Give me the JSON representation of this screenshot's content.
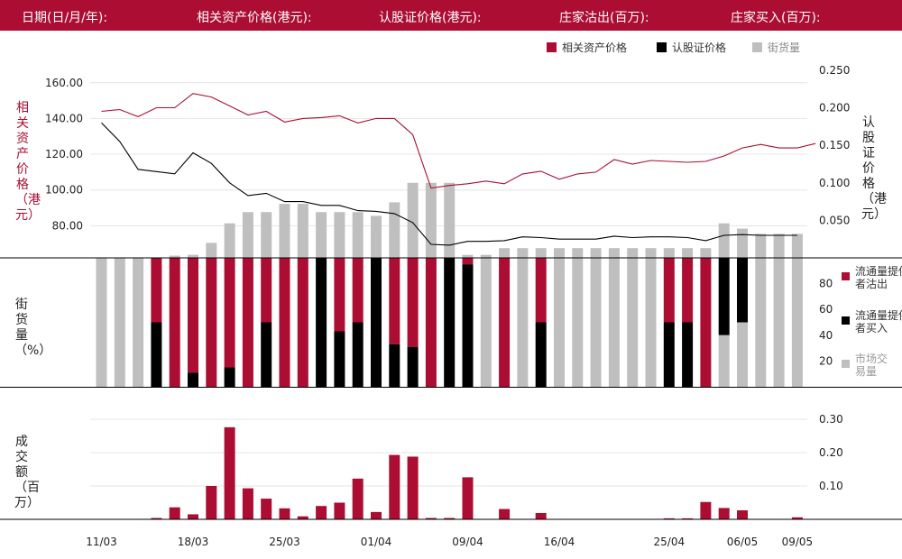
{
  "header": {
    "date_label": "日期(日/月/年):",
    "underlying_price_label": "相关资产价格(港元):",
    "warrant_price_label": "认股证价格(港元):",
    "issuer_sell_label": "庄家沽出(百万):",
    "issuer_buy_label": "庄家买入(百万):"
  },
  "legend": {
    "underlying": "相关资产价格",
    "warrant": "认股证价格",
    "outstanding": "街货量"
  },
  "legend_mid": {
    "sell": "流通量提供者沽出",
    "buy": "流通量提供者买入",
    "market": "市场交易量"
  },
  "axis_titles": {
    "left_top": "相关资产价格（港元）",
    "right_top": "认股证价格（港元）",
    "left_mid": "街货量（%）",
    "left_bottom": "成交额（百万）"
  },
  "colors": {
    "header_bg": "#ab0d33",
    "underlying": "#ab0d33",
    "warrant": "#000000",
    "outstanding": "#bfbfbf",
    "sell": "#ab0d33",
    "buy": "#000000",
    "market": "#bfbfbf",
    "turnover": "#ab0d33"
  },
  "chart_data": {
    "type": "line",
    "x_labels": [
      "11/03",
      "18/03",
      "25/03",
      "01/04",
      "09/04",
      "16/04",
      "25/04",
      "06/05",
      "09/05"
    ],
    "x_label_index": [
      0,
      5,
      10,
      15,
      20,
      25,
      31,
      35,
      38
    ],
    "left_axis": {
      "ticks": [
        "80.00",
        "100.00",
        "120.00",
        "140.00",
        "160.00"
      ],
      "ylim": [
        62,
        172
      ]
    },
    "right_axis": {
      "ticks": [
        "0.050",
        "0.100",
        "0.150",
        "0.200",
        "0.250"
      ],
      "ylim": [
        0,
        0.262
      ]
    },
    "mid_axis": {
      "ticks": [
        "20",
        "40",
        "60",
        "80"
      ],
      "ylim": [
        0,
        100
      ]
    },
    "bottom_axis": {
      "ticks": [
        "0.10",
        "0.20",
        "0.30"
      ],
      "ylim": [
        0,
        0.3
      ]
    },
    "series_underlying": [
      144,
      145,
      141,
      146,
      146,
      154,
      152,
      147,
      142,
      144,
      138,
      140,
      140.5,
      141.5,
      137.5,
      140,
      140,
      131,
      101,
      102.5,
      103.5,
      105,
      103.5,
      109,
      110.5,
      106,
      109,
      110,
      117,
      114.5,
      116.5,
      116,
      115.5,
      116,
      119,
      123.5,
      125.5,
      123.5,
      123.5,
      126
    ],
    "series_warrant": [
      0.18,
      0.155,
      0.118,
      0.115,
      0.112,
      0.14,
      0.126,
      0.1,
      0.083,
      0.086,
      0.075,
      0.075,
      0.07,
      0.07,
      0.063,
      0.062,
      0.059,
      0.047,
      0.018,
      0.017,
      0.022,
      0.022,
      0.023,
      0.028,
      0.027,
      0.025,
      0.025,
      0.025,
      0.029,
      0.027,
      0.028,
      0.028,
      0.027,
      0.023,
      0.03,
      0.031,
      0.03,
      0.03,
      0.03,
      null
    ],
    "series_outstanding": [
      null,
      null,
      null,
      null,
      0.003,
      0.004,
      0.02,
      0.046,
      0.061,
      0.061,
      0.072,
      0.072,
      0.061,
      0.061,
      0.061,
      0.056,
      0.074,
      0.1,
      0.1,
      0.1,
      0.004,
      0.004,
      0.013,
      0.013,
      0.013,
      0.013,
      0.013,
      0.013,
      0.013,
      0.013,
      0.013,
      0.013,
      0.013,
      0.013,
      0.046,
      0.039,
      0.032,
      0.032,
      0.032,
      null
    ],
    "mid_bars": [
      {
        "sell": 0,
        "buy": 0,
        "market": 100
      },
      {
        "sell": 0,
        "buy": 0,
        "market": 100
      },
      {
        "sell": 0,
        "buy": 0,
        "market": 100
      },
      {
        "sell": 50,
        "buy": 50,
        "market": 0
      },
      {
        "sell": 100,
        "buy": 0,
        "market": 0
      },
      {
        "sell": 89,
        "buy": 11,
        "market": 0
      },
      {
        "sell": 100,
        "buy": 0,
        "market": 0
      },
      {
        "sell": 85,
        "buy": 15,
        "market": 0
      },
      {
        "sell": 100,
        "buy": 0,
        "market": 0
      },
      {
        "sell": 50,
        "buy": 50,
        "market": 0
      },
      {
        "sell": 100,
        "buy": 0,
        "market": 0
      },
      {
        "sell": 100,
        "buy": 0,
        "market": 0
      },
      {
        "sell": 0,
        "buy": 100,
        "market": 0
      },
      {
        "sell": 57,
        "buy": 43,
        "market": 0
      },
      {
        "sell": 50,
        "buy": 50,
        "market": 0
      },
      {
        "sell": 0,
        "buy": 100,
        "market": 0
      },
      {
        "sell": 67,
        "buy": 33,
        "market": 0
      },
      {
        "sell": 69,
        "buy": 31,
        "market": 0
      },
      {
        "sell": 100,
        "buy": 0,
        "market": 0
      },
      {
        "sell": 0,
        "buy": 100,
        "market": 0
      },
      {
        "sell": 5,
        "buy": 95,
        "market": 0
      },
      {
        "sell": 0,
        "buy": 0,
        "market": 100
      },
      {
        "sell": 100,
        "buy": 0,
        "market": 0
      },
      {
        "sell": 0,
        "buy": 0,
        "market": 100
      },
      {
        "sell": 50,
        "buy": 50,
        "market": 0
      },
      {
        "sell": 0,
        "buy": 0,
        "market": 100
      },
      {
        "sell": 0,
        "buy": 0,
        "market": 100
      },
      {
        "sell": 0,
        "buy": 0,
        "market": 100
      },
      {
        "sell": 0,
        "buy": 0,
        "market": 100
      },
      {
        "sell": 0,
        "buy": 0,
        "market": 100
      },
      {
        "sell": 0,
        "buy": 0,
        "market": 100
      },
      {
        "sell": 50,
        "buy": 50,
        "market": 0
      },
      {
        "sell": 50,
        "buy": 50,
        "market": 0
      },
      {
        "sell": 100,
        "buy": 0,
        "market": 0
      },
      {
        "sell": 0,
        "buy": 60,
        "market": 40
      },
      {
        "sell": 0,
        "buy": 50,
        "market": 50
      },
      {
        "sell": 0,
        "buy": 0,
        "market": 100
      },
      {
        "sell": 0,
        "buy": 0,
        "market": 100
      },
      {
        "sell": 0,
        "buy": 0,
        "market": 100
      }
    ],
    "turnover": [
      0,
      0,
      0,
      0.004,
      0.036,
      0.015,
      0.1,
      0.276,
      0.093,
      0.062,
      0.033,
      0.009,
      0.04,
      0.05,
      0.122,
      0.022,
      0.193,
      0.188,
      0.004,
      0.004,
      0.126,
      0,
      0.031,
      0,
      0.019,
      0,
      0,
      0,
      0,
      0,
      0,
      0.003,
      0.003,
      0.052,
      0.034,
      0.027,
      0,
      0,
      0.006
    ]
  }
}
